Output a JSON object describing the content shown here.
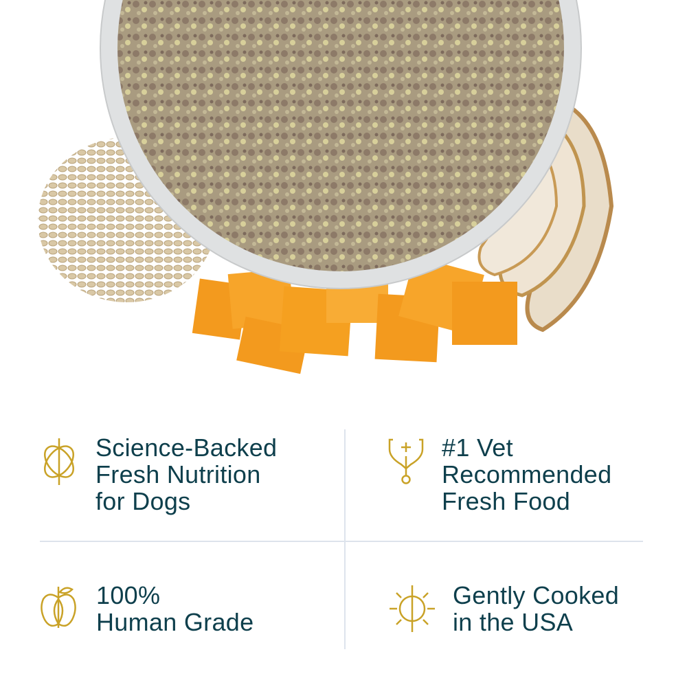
{
  "colors": {
    "text": "#0e3f4c",
    "icon_gold": "#c9a227",
    "divider": "#dde3ec"
  },
  "hero": {
    "image": "bowl-of-fresh-dog-food-with-oats-squash-chicken"
  },
  "features": [
    {
      "icon": "atom-icon",
      "lines": [
        "Science-Backed",
        "Fresh Nutrition",
        "for Dogs"
      ]
    },
    {
      "icon": "stethoscope-icon",
      "lines": [
        "#1 Vet",
        "Recommended",
        "Fresh Food"
      ]
    },
    {
      "icon": "apple-icon",
      "lines": [
        "100%",
        "Human Grade"
      ]
    },
    {
      "icon": "sun-icon",
      "lines": [
        "Gently Cooked",
        "in the USA"
      ]
    }
  ]
}
